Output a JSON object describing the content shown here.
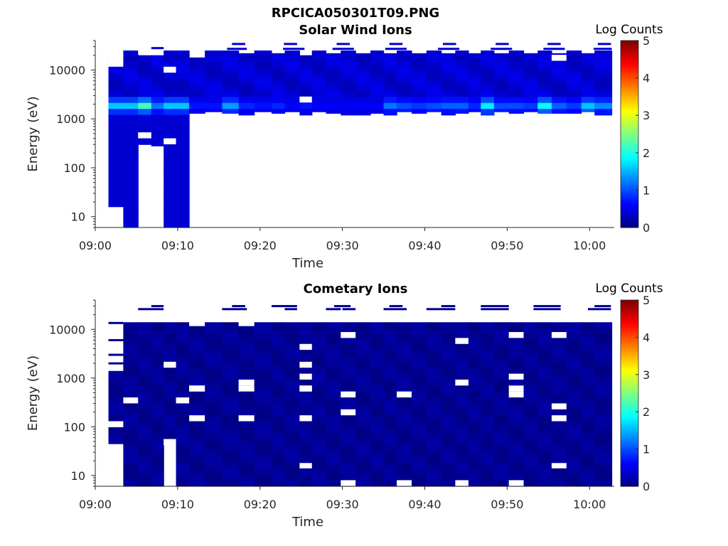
{
  "figure": {
    "title": "RPCICA050301T09.PNG"
  },
  "chart_data": [
    {
      "type": "heatmap",
      "title": "Solar Wind Ions",
      "xlabel": "Time",
      "ylabel": "Energy (eV)",
      "x_ticks": [
        "09:00",
        "09:10",
        "09:20",
        "09:30",
        "09:40",
        "09:50",
        "10:00"
      ],
      "xlim_minutes": [
        0,
        63
      ],
      "y_scale": "log",
      "y_ticks": [
        "10",
        "100",
        "1000",
        "10000"
      ],
      "ylim_ev": [
        6,
        40000
      ],
      "colorbar": {
        "label": "Log Counts",
        "range": [
          0,
          5
        ],
        "ticks": [
          "0",
          "1",
          "2",
          "3",
          "4",
          "5"
        ],
        "colormap": "jet"
      },
      "background_level": 0.4,
      "columns_start_min": [
        1.6,
        3.4,
        5.2,
        6.8,
        8.3,
        11.4,
        13.3,
        15.4,
        17.4,
        19.3,
        21.4,
        23.0,
        24.8,
        26.3,
        28.0,
        29.8,
        31.6,
        33.4,
        35.0,
        36.6,
        38.4,
        40.2,
        42.0,
        43.7,
        45.3,
        46.8,
        48.4,
        50.2,
        52.0,
        53.7,
        55.4,
        57.2,
        59.0,
        60.6
      ],
      "columns_end_min": [
        3.4,
        5.2,
        6.8,
        8.3,
        11.4,
        13.3,
        15.4,
        17.4,
        19.3,
        21.4,
        23.0,
        24.8,
        26.3,
        28.0,
        29.8,
        31.6,
        33.4,
        35.0,
        36.6,
        38.4,
        40.2,
        42.0,
        43.7,
        45.3,
        46.8,
        48.4,
        50.2,
        52.0,
        53.7,
        55.4,
        57.2,
        59.0,
        60.6,
        62.7
      ],
      "columns_emin_ev": [
        16,
        6,
        300,
        280,
        6,
        1300,
        1400,
        1300,
        1200,
        1400,
        1300,
        1400,
        1200,
        1400,
        1300,
        1200,
        1200,
        1300,
        1200,
        1400,
        1300,
        1400,
        1200,
        1300,
        1400,
        1200,
        1400,
        1300,
        1400,
        1300,
        1300,
        1300,
        1400,
        1200
      ],
      "columns_emax_ev": [
        18000,
        25000,
        20000,
        20000,
        25000,
        18000,
        25000,
        25000,
        22000,
        25000,
        22000,
        25000,
        20000,
        25000,
        22000,
        25000,
        22000,
        25000,
        22000,
        25000,
        22000,
        25000,
        22000,
        25000,
        22000,
        25000,
        22000,
        25000,
        22000,
        25000,
        22000,
        25000,
        22000,
        25000
      ],
      "peak_energy_ev": 1900,
      "columns_peak_level": [
        1.6,
        1.6,
        2.2,
        1.2,
        1.6,
        0.7,
        0.7,
        1.4,
        0.8,
        0.7,
        0.8,
        0.6,
        0.7,
        0.6,
        0.6,
        0.6,
        0.6,
        0.6,
        1.2,
        1.0,
        0.9,
        1.0,
        1.1,
        1.1,
        0.8,
        1.8,
        1.0,
        1.0,
        0.9,
        1.9,
        1.1,
        0.9,
        1.6,
        1.3
      ],
      "gap_bins": [
        {
          "t_min": 1.6,
          "t_max": 3.4,
          "e_ev": 16000
        },
        {
          "t_min": 1.6,
          "t_max": 3.4,
          "e_ev": 14500
        },
        {
          "t_min": 5.2,
          "t_max": 6.8,
          "e_ev": 21000
        },
        {
          "t_min": 5.2,
          "t_max": 6.8,
          "e_ev": 400
        },
        {
          "t_min": 8.3,
          "t_max": 9.8,
          "e_ev": 9000
        },
        {
          "t_min": 8.3,
          "t_max": 9.8,
          "e_ev": 340
        },
        {
          "t_min": 24.8,
          "t_max": 26.3,
          "e_ev": 2800
        },
        {
          "t_min": 55.4,
          "t_max": 57.2,
          "e_ev": 19000
        }
      ],
      "strip_lines": [
        {
          "t_min": 6.8,
          "t_max": 8.3,
          "e_ev": 28000
        },
        {
          "t_min": 16.6,
          "t_max": 18.2,
          "e_ev": 34000
        },
        {
          "t_min": 16.0,
          "t_max": 18.4,
          "e_ev": 27000
        },
        {
          "t_min": 22.9,
          "t_max": 24.5,
          "e_ev": 34000
        },
        {
          "t_min": 22.8,
          "t_max": 25.4,
          "e_ev": 27000
        },
        {
          "t_min": 29.3,
          "t_max": 30.9,
          "e_ev": 34000
        },
        {
          "t_min": 28.8,
          "t_max": 31.4,
          "e_ev": 27000
        },
        {
          "t_min": 35.7,
          "t_max": 37.3,
          "e_ev": 34000
        },
        {
          "t_min": 35.2,
          "t_max": 37.8,
          "e_ev": 27000
        },
        {
          "t_min": 42.2,
          "t_max": 43.8,
          "e_ev": 34000
        },
        {
          "t_min": 41.6,
          "t_max": 44.2,
          "e_ev": 27000
        },
        {
          "t_min": 48.6,
          "t_max": 50.2,
          "e_ev": 34000
        },
        {
          "t_min": 48.0,
          "t_max": 50.6,
          "e_ev": 27000
        },
        {
          "t_min": 54.9,
          "t_max": 56.5,
          "e_ev": 34000
        },
        {
          "t_min": 54.4,
          "t_max": 57.0,
          "e_ev": 27000
        },
        {
          "t_min": 61.0,
          "t_max": 62.6,
          "e_ev": 34000
        },
        {
          "t_min": 60.5,
          "t_max": 62.7,
          "e_ev": 27000
        }
      ]
    },
    {
      "type": "heatmap",
      "title": "Cometary Ions",
      "xlabel": "Time",
      "ylabel": "Energy (eV)",
      "x_ticks": [
        "09:00",
        "09:10",
        "09:20",
        "09:30",
        "09:40",
        "09:50",
        "10:00"
      ],
      "xlim_minutes": [
        0,
        63
      ],
      "y_scale": "log",
      "y_ticks": [
        "10",
        "100",
        "1000",
        "10000"
      ],
      "ylim_ev": [
        6,
        40000
      ],
      "colorbar": {
        "label": "Log Counts",
        "range": [
          0,
          5
        ],
        "ticks": [
          "0",
          "1",
          "2",
          "3",
          "4",
          "5"
        ],
        "colormap": "jet"
      },
      "background_level": 0.1,
      "columns_start_min": [
        1.6,
        3.4,
        5.2,
        6.8,
        8.3,
        9.8,
        11.4,
        13.3,
        15.4,
        17.4,
        19.3,
        21.4,
        23.0,
        24.8,
        26.3,
        28.0,
        29.8,
        31.6,
        33.4,
        35.0,
        36.6,
        38.4,
        40.2,
        42.0,
        43.7,
        45.3,
        46.8,
        48.4,
        50.2,
        52.0,
        53.7,
        55.4,
        57.2,
        59.0,
        60.6
      ],
      "columns_end_min": [
        3.4,
        5.2,
        6.8,
        8.3,
        9.8,
        11.4,
        13.3,
        15.4,
        17.4,
        19.3,
        21.4,
        23.0,
        24.8,
        26.3,
        28.0,
        29.8,
        31.6,
        33.4,
        35.0,
        36.6,
        38.4,
        40.2,
        42.0,
        43.7,
        45.3,
        46.8,
        48.4,
        50.2,
        52.0,
        53.7,
        55.4,
        57.2,
        59.0,
        60.6,
        62.7
      ],
      "columns_emin_ev": [
        45,
        6,
        6,
        6,
        45,
        6,
        6,
        6,
        6,
        6,
        6,
        6,
        6,
        6,
        6,
        6,
        6,
        6,
        6,
        6,
        6,
        6,
        6,
        6,
        6,
        6,
        6,
        6,
        6,
        6,
        6,
        6,
        6,
        6,
        6
      ],
      "columns_emax_ev": [
        1400,
        14000,
        14000,
        14000,
        14000,
        14000,
        14000,
        14000,
        14000,
        14000,
        14000,
        14000,
        14000,
        14000,
        14000,
        14000,
        14000,
        14000,
        14000,
        14000,
        14000,
        14000,
        14000,
        14000,
        14000,
        14000,
        14000,
        14000,
        14000,
        14000,
        14000,
        14000,
        14000,
        14000,
        14000
      ],
      "gap_bins": [
        {
          "t_min": 1.6,
          "t_max": 3.4,
          "e_ev": 110
        },
        {
          "t_min": 3.4,
          "t_max": 5.2,
          "e_ev": 320
        },
        {
          "t_min": 8.3,
          "t_max": 9.8,
          "e_ev": 45
        },
        {
          "t_min": 8.3,
          "t_max": 9.8,
          "e_ev": 2000
        },
        {
          "t_min": 9.8,
          "t_max": 11.4,
          "e_ev": 380
        },
        {
          "t_min": 11.4,
          "t_max": 13.3,
          "e_ev": 130
        },
        {
          "t_min": 11.4,
          "t_max": 13.3,
          "e_ev": 560
        },
        {
          "t_min": 11.4,
          "t_max": 13.3,
          "e_ev": 700
        },
        {
          "t_min": 11.4,
          "t_max": 13.3,
          "e_ev": 12500
        },
        {
          "t_min": 17.4,
          "t_max": 19.3,
          "e_ev": 130
        },
        {
          "t_min": 17.4,
          "t_max": 19.3,
          "e_ev": 650
        },
        {
          "t_min": 17.4,
          "t_max": 19.3,
          "e_ev": 860
        },
        {
          "t_min": 17.4,
          "t_max": 19.3,
          "e_ev": 12500
        },
        {
          "t_min": 24.8,
          "t_max": 26.3,
          "e_ev": 16
        },
        {
          "t_min": 24.8,
          "t_max": 26.3,
          "e_ev": 130
        },
        {
          "t_min": 24.8,
          "t_max": 26.3,
          "e_ev": 560
        },
        {
          "t_min": 24.8,
          "t_max": 26.3,
          "e_ev": 680
        },
        {
          "t_min": 24.8,
          "t_max": 26.3,
          "e_ev": 930
        },
        {
          "t_min": 24.8,
          "t_max": 26.3,
          "e_ev": 1700
        },
        {
          "t_min": 24.8,
          "t_max": 26.3,
          "e_ev": 4400
        },
        {
          "t_min": 29.8,
          "t_max": 31.6,
          "e_ev": 6
        },
        {
          "t_min": 29.8,
          "t_max": 31.6,
          "e_ev": 210
        },
        {
          "t_min": 29.8,
          "t_max": 31.6,
          "e_ev": 520
        },
        {
          "t_min": 29.8,
          "t_max": 31.6,
          "e_ev": 8200
        },
        {
          "t_min": 36.6,
          "t_max": 38.4,
          "e_ev": 6
        },
        {
          "t_min": 36.6,
          "t_max": 38.4,
          "e_ev": 470
        },
        {
          "t_min": 43.7,
          "t_max": 45.3,
          "e_ev": 6
        },
        {
          "t_min": 43.7,
          "t_max": 45.3,
          "e_ev": 800
        },
        {
          "t_min": 43.7,
          "t_max": 45.3,
          "e_ev": 5800
        },
        {
          "t_min": 50.2,
          "t_max": 52.0,
          "e_ev": 6
        },
        {
          "t_min": 50.2,
          "t_max": 52.0,
          "e_ev": 460
        },
        {
          "t_min": 50.2,
          "t_max": 52.0,
          "e_ev": 700
        },
        {
          "t_min": 50.2,
          "t_max": 52.0,
          "e_ev": 1150
        },
        {
          "t_min": 50.2,
          "t_max": 52.0,
          "e_ev": 6800
        },
        {
          "t_min": 55.4,
          "t_max": 57.2,
          "e_ev": 16
        },
        {
          "t_min": 55.4,
          "t_max": 57.2,
          "e_ev": 150
        },
        {
          "t_min": 55.4,
          "t_max": 57.2,
          "e_ev": 260
        },
        {
          "t_min": 55.4,
          "t_max": 57.2,
          "e_ev": 8400
        }
      ],
      "strip_lines": [
        {
          "t_min": 1.6,
          "t_max": 3.4,
          "e_ev": 13500
        },
        {
          "t_min": 1.6,
          "t_max": 3.4,
          "e_ev": 6000
        },
        {
          "t_min": 1.6,
          "t_max": 3.4,
          "e_ev": 3000
        },
        {
          "t_min": 1.6,
          "t_max": 3.4,
          "e_ev": 2000
        },
        {
          "t_min": 3.4,
          "t_max": 5.2,
          "e_ev": 3000
        },
        {
          "t_min": 5.2,
          "t_max": 6.8,
          "e_ev": 3800
        },
        {
          "t_min": 5.2,
          "t_max": 8.3,
          "e_ev": 26000
        },
        {
          "t_min": 6.8,
          "t_max": 8.3,
          "e_ev": 30000
        },
        {
          "t_min": 15.4,
          "t_max": 18.4,
          "e_ev": 26000
        },
        {
          "t_min": 16.6,
          "t_max": 18.2,
          "e_ev": 30000
        },
        {
          "t_min": 21.4,
          "t_max": 24.5,
          "e_ev": 30000
        },
        {
          "t_min": 23.0,
          "t_max": 24.5,
          "e_ev": 26000
        },
        {
          "t_min": 28.0,
          "t_max": 29.8,
          "e_ev": 26000
        },
        {
          "t_min": 30.0,
          "t_max": 31.6,
          "e_ev": 26000
        },
        {
          "t_min": 29.0,
          "t_max": 31.0,
          "e_ev": 30000
        },
        {
          "t_min": 35.0,
          "t_max": 37.8,
          "e_ev": 26000
        },
        {
          "t_min": 35.7,
          "t_max": 37.3,
          "e_ev": 30000
        },
        {
          "t_min": 40.2,
          "t_max": 43.7,
          "e_ev": 26000
        },
        {
          "t_min": 42.0,
          "t_max": 43.7,
          "e_ev": 30000
        },
        {
          "t_min": 46.8,
          "t_max": 50.2,
          "e_ev": 26000
        },
        {
          "t_min": 46.8,
          "t_max": 50.2,
          "e_ev": 30000
        },
        {
          "t_min": 53.2,
          "t_max": 56.5,
          "e_ev": 26000
        },
        {
          "t_min": 53.2,
          "t_max": 56.5,
          "e_ev": 30000
        },
        {
          "t_min": 59.8,
          "t_max": 62.6,
          "e_ev": 26000
        },
        {
          "t_min": 60.6,
          "t_max": 62.6,
          "e_ev": 30000
        }
      ]
    }
  ]
}
